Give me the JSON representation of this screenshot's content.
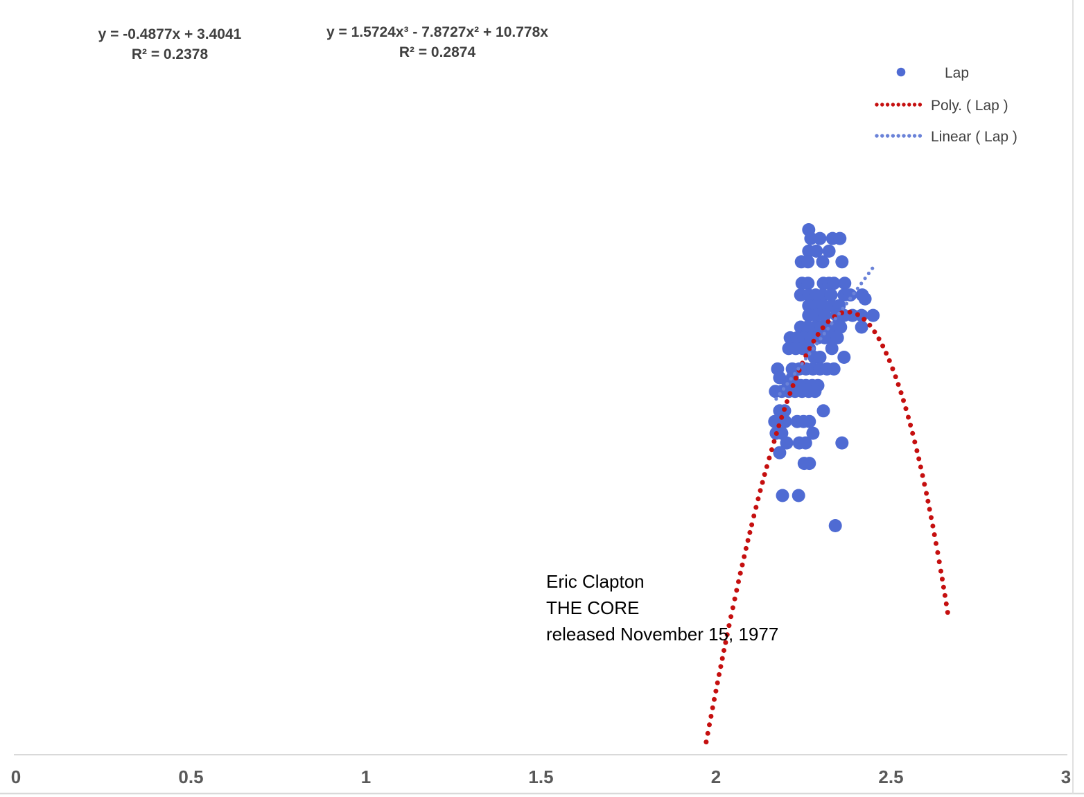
{
  "chart_data": {
    "type": "scatter",
    "title": "",
    "xlabel": "",
    "ylabel": "",
    "x_axis": {
      "min": 0,
      "max": 3,
      "ticks": [
        "0",
        "0.5",
        "1",
        "1.5",
        "2",
        "2.5",
        "3"
      ],
      "tick_values": [
        0,
        0.5,
        1,
        1.5,
        2,
        2.5,
        3
      ]
    },
    "y_axis": {
      "min": 1.935,
      "max": 2.711,
      "reversed": true,
      "hidden": true
    },
    "grid": false,
    "series": [
      {
        "name": "Lap",
        "marker_color": "#4F6BD3",
        "points": [
          [
            2.265,
            2.171
          ],
          [
            2.271,
            2.18
          ],
          [
            2.297,
            2.18
          ],
          [
            2.333,
            2.18
          ],
          [
            2.354,
            2.18
          ],
          [
            2.265,
            2.193
          ],
          [
            2.287,
            2.193
          ],
          [
            2.323,
            2.193
          ],
          [
            2.244,
            2.204
          ],
          [
            2.263,
            2.204
          ],
          [
            2.305,
            2.204
          ],
          [
            2.36,
            2.204
          ],
          [
            2.246,
            2.226
          ],
          [
            2.263,
            2.226
          ],
          [
            2.307,
            2.226
          ],
          [
            2.323,
            2.226
          ],
          [
            2.337,
            2.226
          ],
          [
            2.368,
            2.226
          ],
          [
            2.242,
            2.238
          ],
          [
            2.265,
            2.238
          ],
          [
            2.285,
            2.238
          ],
          [
            2.305,
            2.238
          ],
          [
            2.329,
            2.238
          ],
          [
            2.366,
            2.238
          ],
          [
            2.384,
            2.238
          ],
          [
            2.418,
            2.238
          ],
          [
            2.426,
            2.242
          ],
          [
            2.265,
            2.249
          ],
          [
            2.287,
            2.249
          ],
          [
            2.307,
            2.249
          ],
          [
            2.331,
            2.249
          ],
          [
            2.352,
            2.249
          ],
          [
            2.265,
            2.259
          ],
          [
            2.287,
            2.259
          ],
          [
            2.311,
            2.259
          ],
          [
            2.345,
            2.259
          ],
          [
            2.366,
            2.259
          ],
          [
            2.39,
            2.259
          ],
          [
            2.416,
            2.259
          ],
          [
            2.449,
            2.259
          ],
          [
            2.242,
            2.271
          ],
          [
            2.261,
            2.271
          ],
          [
            2.283,
            2.271
          ],
          [
            2.301,
            2.271
          ],
          [
            2.321,
            2.271
          ],
          [
            2.341,
            2.271
          ],
          [
            2.356,
            2.271
          ],
          [
            2.416,
            2.271
          ],
          [
            2.212,
            2.282
          ],
          [
            2.232,
            2.282
          ],
          [
            2.252,
            2.282
          ],
          [
            2.271,
            2.282
          ],
          [
            2.291,
            2.282
          ],
          [
            2.311,
            2.282
          ],
          [
            2.331,
            2.282
          ],
          [
            2.347,
            2.282
          ],
          [
            2.208,
            2.293
          ],
          [
            2.228,
            2.293
          ],
          [
            2.248,
            2.293
          ],
          [
            2.267,
            2.293
          ],
          [
            2.331,
            2.293
          ],
          [
            2.281,
            2.302
          ],
          [
            2.297,
            2.302
          ],
          [
            2.366,
            2.302
          ],
          [
            2.176,
            2.314
          ],
          [
            2.218,
            2.314
          ],
          [
            2.238,
            2.314
          ],
          [
            2.257,
            2.314
          ],
          [
            2.277,
            2.314
          ],
          [
            2.297,
            2.314
          ],
          [
            2.317,
            2.314
          ],
          [
            2.337,
            2.314
          ],
          [
            2.182,
            2.323
          ],
          [
            2.218,
            2.323
          ],
          [
            2.206,
            2.331
          ],
          [
            2.226,
            2.331
          ],
          [
            2.242,
            2.331
          ],
          [
            2.257,
            2.331
          ],
          [
            2.275,
            2.331
          ],
          [
            2.291,
            2.331
          ],
          [
            2.17,
            2.337
          ],
          [
            2.188,
            2.337
          ],
          [
            2.208,
            2.337
          ],
          [
            2.226,
            2.337
          ],
          [
            2.246,
            2.337
          ],
          [
            2.265,
            2.337
          ],
          [
            2.283,
            2.337
          ],
          [
            2.182,
            2.357
          ],
          [
            2.196,
            2.357
          ],
          [
            2.307,
            2.357
          ],
          [
            2.168,
            2.368
          ],
          [
            2.198,
            2.368
          ],
          [
            2.232,
            2.368
          ],
          [
            2.25,
            2.368
          ],
          [
            2.267,
            2.368
          ],
          [
            2.172,
            2.38
          ],
          [
            2.188,
            2.38
          ],
          [
            2.277,
            2.38
          ],
          [
            2.202,
            2.39
          ],
          [
            2.238,
            2.39
          ],
          [
            2.256,
            2.39
          ],
          [
            2.36,
            2.39
          ],
          [
            2.182,
            2.4
          ],
          [
            2.252,
            2.411
          ],
          [
            2.267,
            2.411
          ],
          [
            2.19,
            2.444
          ],
          [
            2.236,
            2.444
          ],
          [
            2.341,
            2.475
          ]
        ]
      }
    ],
    "trendlines": [
      {
        "name": "Poly. (   Lap )",
        "type": "polynomial",
        "color": "#C50F0F",
        "equation": "y = 1.5724x³ - 7.8727x² + 10.778x",
        "r_squared": "R² = 0.2874",
        "coefficients": [
          1.5724,
          -7.8727,
          10.778,
          0
        ],
        "x_range": [
          1.972,
          2.665
        ]
      },
      {
        "name": "Linear (   Lap )",
        "type": "linear",
        "color": "#6A82D8",
        "equation": "y = -0.4877x + 3.4041",
        "r_squared": "R² = 0.2378",
        "coefficients": [
          -0.4877,
          3.4041
        ],
        "x_range": [
          2.172,
          2.452
        ]
      }
    ],
    "legend": {
      "position": "top-right",
      "entries": [
        {
          "label": "Lap",
          "type": "marker",
          "color": "#4F6BD3"
        },
        {
          "label": "Poly. (   Lap )",
          "type": "dotted-line",
          "color": "#C50F0F"
        },
        {
          "label": "Linear (   Lap )",
          "type": "dotted-line",
          "color": "#6A82D8"
        }
      ]
    },
    "annotations": {
      "linear_equation": {
        "line1": "y = -0.4877x + 3.4041",
        "line2": "R² = 0.2378"
      },
      "poly_equation": {
        "line1": "y = 1.5724x³ - 7.8727x² + 10.778x",
        "line2": "R² = 0.2874"
      },
      "song_note": {
        "line1": "Eric Clapton",
        "line2": "THE CORE",
        "line3": "released November 15, 1977"
      }
    },
    "colors": {
      "marker_blue": "#4F6BD3",
      "trend_red": "#C50F0F",
      "trend_blue": "#6A82D8",
      "text_dark_gray": "#404040",
      "axis_label_gray": "#595959",
      "axis_line_gray": "#D9D9D9"
    }
  }
}
